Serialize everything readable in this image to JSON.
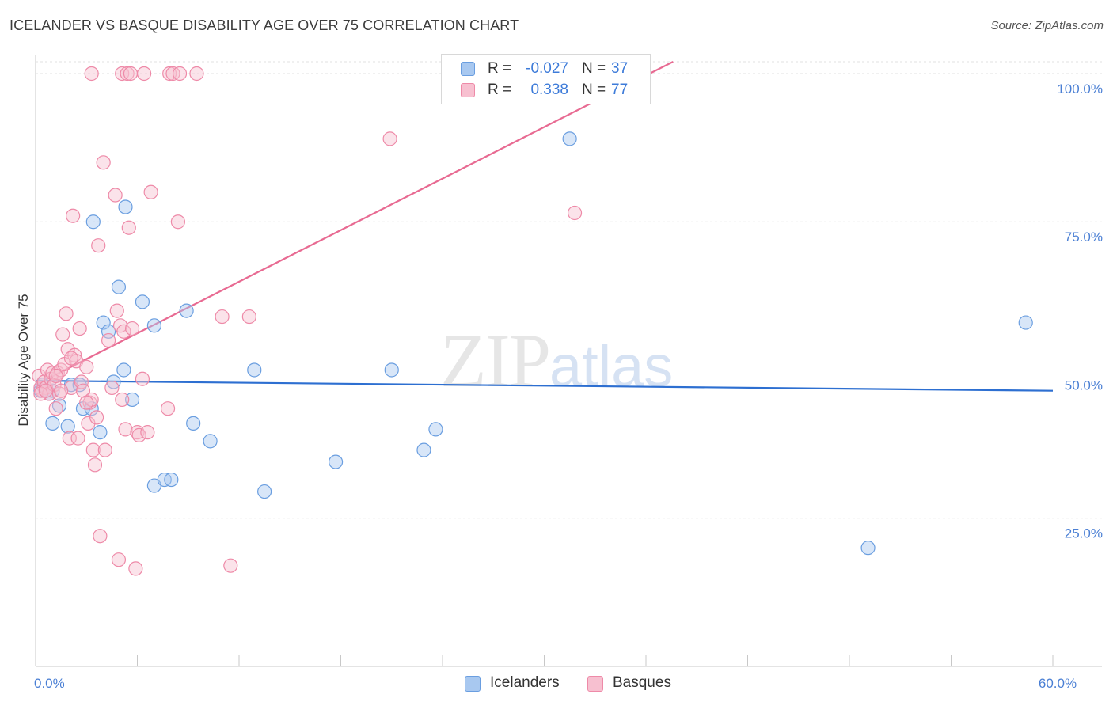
{
  "title": "ICELANDER VS BASQUE DISABILITY AGE OVER 75 CORRELATION CHART",
  "source": "Source: ZipAtlas.com",
  "watermark": {
    "zip": "ZIP",
    "atlas": "atlas"
  },
  "legend": {
    "rows": [
      {
        "r_label": "R =",
        "r_value": "-0.027",
        "n_label": "N =",
        "n_value": "37",
        "color": "#a8c8f0",
        "border": "#6a9ee0"
      },
      {
        "r_label": "R =",
        "r_value": "0.338",
        "n_label": "N =",
        "n_value": "77",
        "color": "#f7c0d0",
        "border": "#ee8aa8"
      }
    ]
  },
  "bottom_legend": [
    {
      "label": "Icelanders",
      "color": "#a8c8f0",
      "border": "#6a9ee0"
    },
    {
      "label": "Basques",
      "color": "#f7c0d0",
      "border": "#ee8aa8"
    }
  ],
  "chart_data": {
    "type": "scatter",
    "ylabel": "Disability Age Over 75",
    "xlim": [
      0,
      60
    ],
    "ylim": [
      0,
      102
    ],
    "x_ticks": [
      {
        "value": 0,
        "label": "0.0%"
      },
      {
        "value": 60,
        "label": "60.0%"
      }
    ],
    "y_ticks": [
      {
        "value": 25,
        "label": "25.0%"
      },
      {
        "value": 50,
        "label": "50.0%"
      },
      {
        "value": 75,
        "label": "75.0%"
      },
      {
        "value": 100,
        "label": "100.0%"
      }
    ],
    "grid": true,
    "series": [
      {
        "name": "Icelanders",
        "color": "#6a9ee0",
        "fill": "#a8c8f0",
        "trend": {
          "x0": 0,
          "y0": 48.2,
          "x1": 60,
          "y1": 46.5,
          "color": "#2d6fd1"
        },
        "points": [
          [
            0.3,
            46.5
          ],
          [
            0.4,
            47.5
          ],
          [
            1.0,
            41.0
          ],
          [
            1.0,
            46.5
          ],
          [
            1.4,
            44.0
          ],
          [
            1.9,
            40.5
          ],
          [
            2.1,
            47.5
          ],
          [
            2.6,
            47.5
          ],
          [
            2.8,
            43.5
          ],
          [
            3.3,
            43.5
          ],
          [
            3.4,
            75.0
          ],
          [
            3.8,
            39.5
          ],
          [
            4.0,
            58.0
          ],
          [
            4.3,
            56.5
          ],
          [
            4.6,
            48.0
          ],
          [
            4.9,
            64.0
          ],
          [
            5.2,
            50.0
          ],
          [
            5.3,
            77.5
          ],
          [
            5.7,
            45.0
          ],
          [
            6.3,
            61.5
          ],
          [
            7.0,
            57.5
          ],
          [
            7.0,
            30.5
          ],
          [
            7.6,
            31.5
          ],
          [
            8.0,
            31.5
          ],
          [
            8.9,
            60.0
          ],
          [
            9.3,
            41.0
          ],
          [
            10.3,
            38.0
          ],
          [
            12.9,
            50.0
          ],
          [
            13.5,
            29.5
          ],
          [
            17.7,
            34.5
          ],
          [
            21.0,
            50.0
          ],
          [
            22.9,
            36.5
          ],
          [
            23.6,
            40.0
          ],
          [
            31.5,
            89.0
          ],
          [
            49.1,
            20.0
          ],
          [
            58.4,
            58.0
          ],
          [
            0.8,
            46.0
          ]
        ]
      },
      {
        "name": "Basques",
        "color": "#ee8aa8",
        "fill": "#f7c0d0",
        "trend": {
          "x0": 0,
          "y0": 47.5,
          "x1": 37.6,
          "y1": 102,
          "color": "#e86a92"
        },
        "points": [
          [
            0.2,
            49.0
          ],
          [
            0.3,
            47.0
          ],
          [
            0.4,
            46.5
          ],
          [
            0.5,
            48.0
          ],
          [
            0.6,
            47.0
          ],
          [
            0.7,
            50.0
          ],
          [
            0.8,
            46.0
          ],
          [
            0.9,
            48.5
          ],
          [
            1.0,
            49.5
          ],
          [
            1.1,
            47.5
          ],
          [
            1.2,
            43.5
          ],
          [
            1.3,
            49.5
          ],
          [
            1.4,
            46.0
          ],
          [
            1.5,
            50.0
          ],
          [
            1.6,
            56.0
          ],
          [
            1.7,
            51.0
          ],
          [
            1.8,
            59.5
          ],
          [
            1.9,
            53.5
          ],
          [
            2.0,
            38.5
          ],
          [
            2.1,
            47.0
          ],
          [
            2.2,
            76.0
          ],
          [
            2.3,
            52.5
          ],
          [
            2.4,
            51.5
          ],
          [
            2.5,
            38.5
          ],
          [
            2.6,
            57.0
          ],
          [
            2.7,
            48.0
          ],
          [
            2.8,
            46.5
          ],
          [
            3.0,
            50.5
          ],
          [
            3.1,
            41.0
          ],
          [
            3.2,
            44.5
          ],
          [
            3.3,
            45.0
          ],
          [
            3.4,
            36.5
          ],
          [
            3.5,
            34.0
          ],
          [
            3.6,
            42.0
          ],
          [
            3.7,
            71.0
          ],
          [
            3.8,
            22.0
          ],
          [
            4.0,
            85.0
          ],
          [
            4.1,
            36.5
          ],
          [
            4.3,
            55.0
          ],
          [
            4.5,
            47.0
          ],
          [
            4.7,
            79.5
          ],
          [
            4.8,
            60.0
          ],
          [
            4.9,
            18.0
          ],
          [
            5.0,
            57.5
          ],
          [
            5.1,
            45.0
          ],
          [
            5.2,
            56.5
          ],
          [
            5.3,
            40.0
          ],
          [
            5.5,
            74.0
          ],
          [
            5.7,
            57.0
          ],
          [
            5.9,
            16.5
          ],
          [
            6.0,
            39.5
          ],
          [
            6.1,
            39.0
          ],
          [
            6.3,
            48.5
          ],
          [
            6.6,
            39.5
          ],
          [
            6.8,
            80.0
          ],
          [
            7.8,
            43.5
          ],
          [
            8.4,
            75.0
          ],
          [
            11.0,
            59.0
          ],
          [
            11.5,
            17.0
          ],
          [
            12.6,
            59.0
          ],
          [
            20.9,
            89.0
          ],
          [
            31.8,
            76.5
          ],
          [
            3.3,
            100.0
          ],
          [
            5.1,
            100.0
          ],
          [
            5.4,
            100.0
          ],
          [
            5.6,
            100.0
          ],
          [
            6.4,
            100.0
          ],
          [
            7.9,
            100.0
          ],
          [
            8.1,
            100.0
          ],
          [
            8.5,
            100.0
          ],
          [
            9.5,
            100.0
          ],
          [
            0.3,
            46.0
          ],
          [
            0.6,
            46.5
          ],
          [
            1.2,
            49.0
          ],
          [
            1.5,
            46.5
          ],
          [
            2.1,
            52.0
          ],
          [
            3.0,
            44.5
          ]
        ]
      }
    ]
  }
}
